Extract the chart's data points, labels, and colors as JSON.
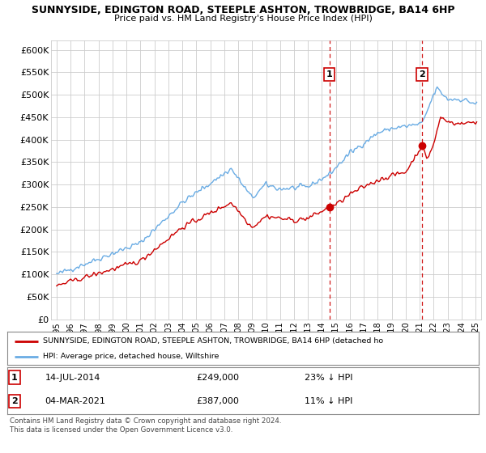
{
  "title": "SUNNYSIDE, EDINGTON ROAD, STEEPLE ASHTON, TROWBRIDGE, BA14 6HP",
  "subtitle": "Price paid vs. HM Land Registry's House Price Index (HPI)",
  "ylabel_ticks": [
    "£0",
    "£50K",
    "£100K",
    "£150K",
    "£200K",
    "£250K",
    "£300K",
    "£350K",
    "£400K",
    "£450K",
    "£500K",
    "£550K",
    "£600K"
  ],
  "ylim": [
    0,
    620000
  ],
  "ytick_vals": [
    0,
    50000,
    100000,
    150000,
    200000,
    250000,
    300000,
    350000,
    400000,
    450000,
    500000,
    550000,
    600000
  ],
  "sale1_date": 2014.54,
  "sale1_price": 249000,
  "sale1_label": "1",
  "sale2_date": 2021.17,
  "sale2_price": 387000,
  "sale2_label": "2",
  "hpi_color": "#6aace4",
  "price_color": "#cc0000",
  "vline_color": "#cc0000",
  "legend_line1": "SUNNYSIDE, EDINGTON ROAD, STEEPLE ASHTON, TROWBRIDGE, BA14 6HP (detached ho",
  "legend_line2": "HPI: Average price, detached house, Wiltshire",
  "table_row1": [
    "1",
    "14-JUL-2014",
    "£249,000",
    "23% ↓ HPI"
  ],
  "table_row2": [
    "2",
    "04-MAR-2021",
    "£387,000",
    "11% ↓ HPI"
  ],
  "footnote": "Contains HM Land Registry data © Crown copyright and database right 2024.\nThis data is licensed under the Open Government Licence v3.0.",
  "background_color": "#ffffff",
  "plot_bg_color": "#ffffff",
  "grid_color": "#cccccc"
}
